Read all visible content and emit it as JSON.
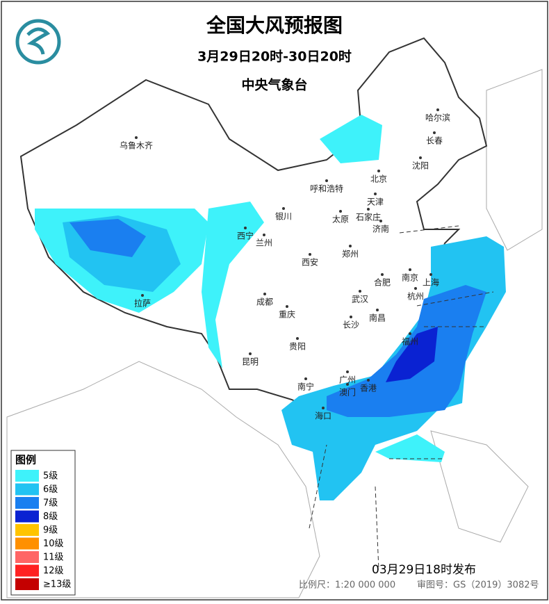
{
  "header": {
    "title": "全国大风预报图",
    "period": "3月29日20时-30日20时",
    "issuer": "中央气象台"
  },
  "legend": {
    "title": "图例",
    "items": [
      {
        "label": "5级",
        "color": "#3ef2fa"
      },
      {
        "label": "6级",
        "color": "#22c3f2"
      },
      {
        "label": "7级",
        "color": "#1a7ff0"
      },
      {
        "label": "8级",
        "color": "#0a22d2"
      },
      {
        "label": "9级",
        "color": "#ffc400"
      },
      {
        "label": "10级",
        "color": "#ff9000"
      },
      {
        "label": "11级",
        "color": "#ff6666"
      },
      {
        "label": "12级",
        "color": "#ff2222"
      },
      {
        "label": "≥13级",
        "color": "#c40000"
      }
    ]
  },
  "cities": [
    "乌鲁木齐",
    "哈尔滨",
    "长春",
    "沈阳",
    "北京",
    "呼和浩特",
    "天津",
    "银川",
    "石家庄",
    "太原",
    "济南",
    "西宁",
    "兰州",
    "郑州",
    "西安",
    "南京",
    "上海",
    "合肥",
    "成都",
    "武汉",
    "杭州",
    "拉萨",
    "重庆",
    "长沙",
    "南昌",
    "福州",
    "贵阳",
    "昆明",
    "广州",
    "南宁",
    "香港",
    "澳门",
    "海口"
  ],
  "footer": {
    "issued": "03月29日18时发布",
    "scale": "比例尺：1:20 000 000",
    "approval": "审图号：GS（2019）3082号"
  }
}
